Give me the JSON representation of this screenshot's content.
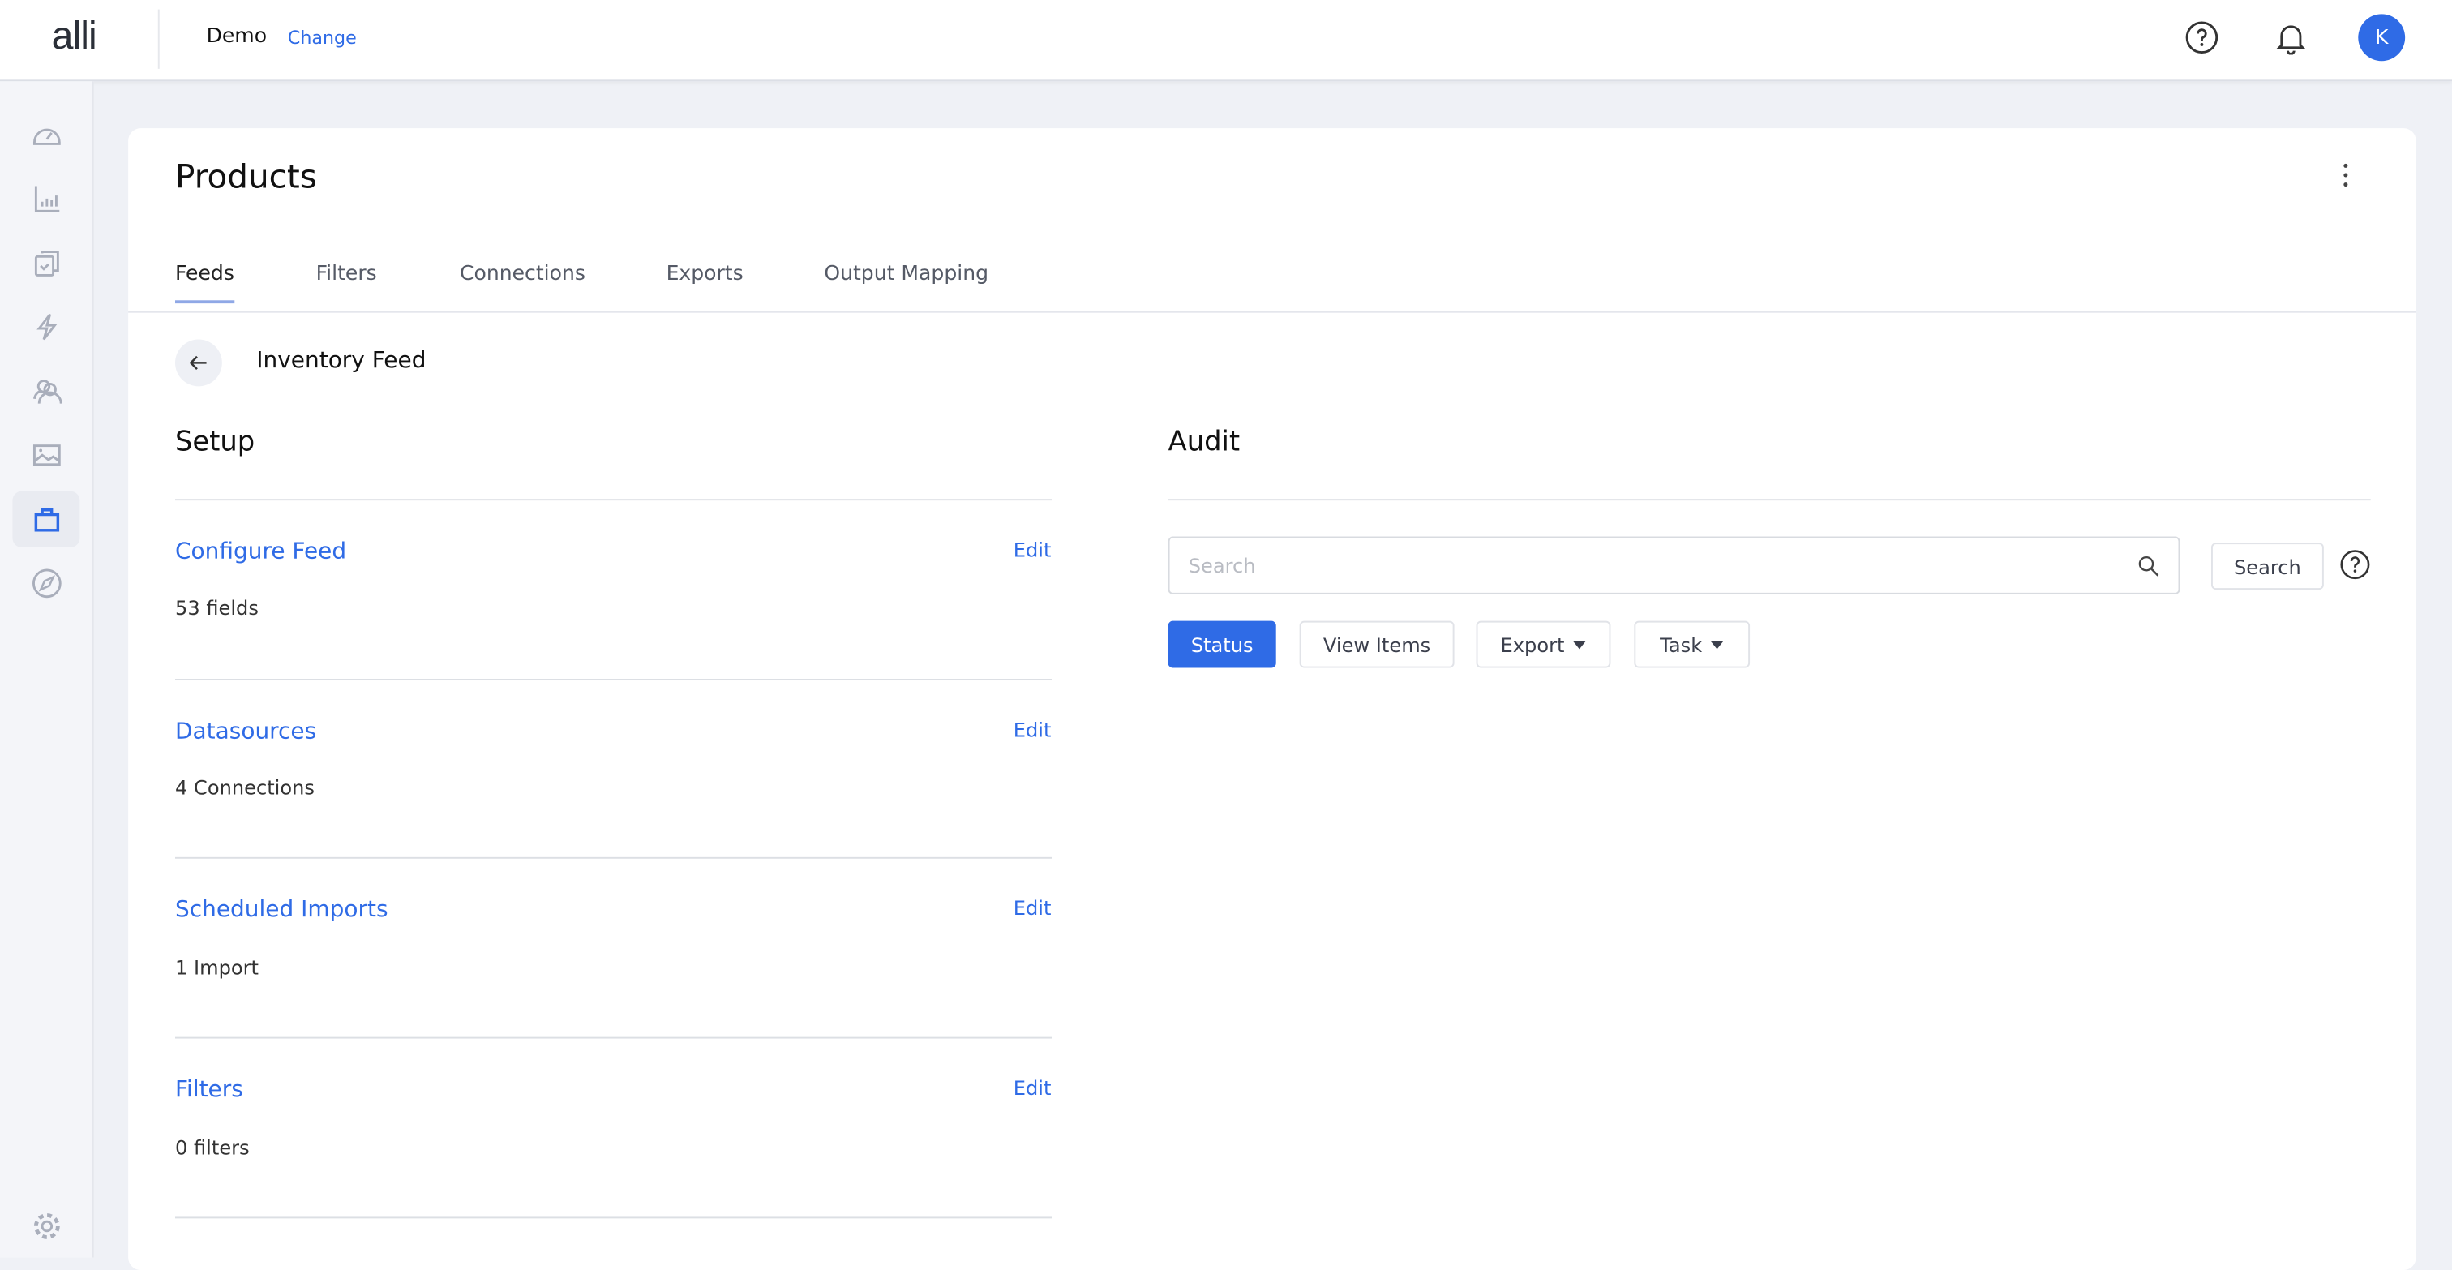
{
  "topbar": {
    "logo": "alli",
    "org_name": "Demo",
    "change_label": "Change",
    "icons": [
      "help-circle-icon",
      "bell-icon"
    ],
    "avatar_initial": "K"
  },
  "sidebar": {
    "items": [
      {
        "icon": "dashboard-gauge-icon",
        "active": false
      },
      {
        "icon": "bar-chart-icon",
        "active": false
      },
      {
        "icon": "clipboard-check-icon",
        "active": false
      },
      {
        "icon": "lightning-icon",
        "active": false
      },
      {
        "icon": "users-icon",
        "active": false
      },
      {
        "icon": "image-icon",
        "active": false
      },
      {
        "icon": "shopping-bag-icon",
        "active": true
      },
      {
        "icon": "compass-icon",
        "active": false
      }
    ],
    "bottom_icon": "settings-gear-icon"
  },
  "page": {
    "title": "Products",
    "tabs": [
      {
        "label": "Feeds",
        "active": true
      },
      {
        "label": "Filters",
        "active": false
      },
      {
        "label": "Connections",
        "active": false
      },
      {
        "label": "Exports",
        "active": false
      },
      {
        "label": "Output Mapping",
        "active": false
      }
    ],
    "feed_name": "Inventory Feed"
  },
  "setup": {
    "heading": "Setup",
    "sections": [
      {
        "title": "Configure Feed",
        "edit": "Edit",
        "summary": "53 fields"
      },
      {
        "title": "Datasources",
        "edit": "Edit",
        "summary": "4 Connections"
      },
      {
        "title": "Scheduled Imports",
        "edit": "Edit",
        "summary": "1 Import"
      },
      {
        "title": "Filters",
        "edit": "Edit",
        "summary": "0 filters"
      }
    ]
  },
  "audit": {
    "heading": "Audit",
    "search_placeholder": "Search",
    "search_value": "",
    "search_button": "Search",
    "buttons": {
      "status": "Status",
      "view_items": "View Items",
      "export": "Export",
      "task": "Task"
    }
  },
  "colors": {
    "accent": "#2f6be6",
    "sidebar_bg": "#f4f5f9",
    "page_bg": "#eff1f6"
  }
}
